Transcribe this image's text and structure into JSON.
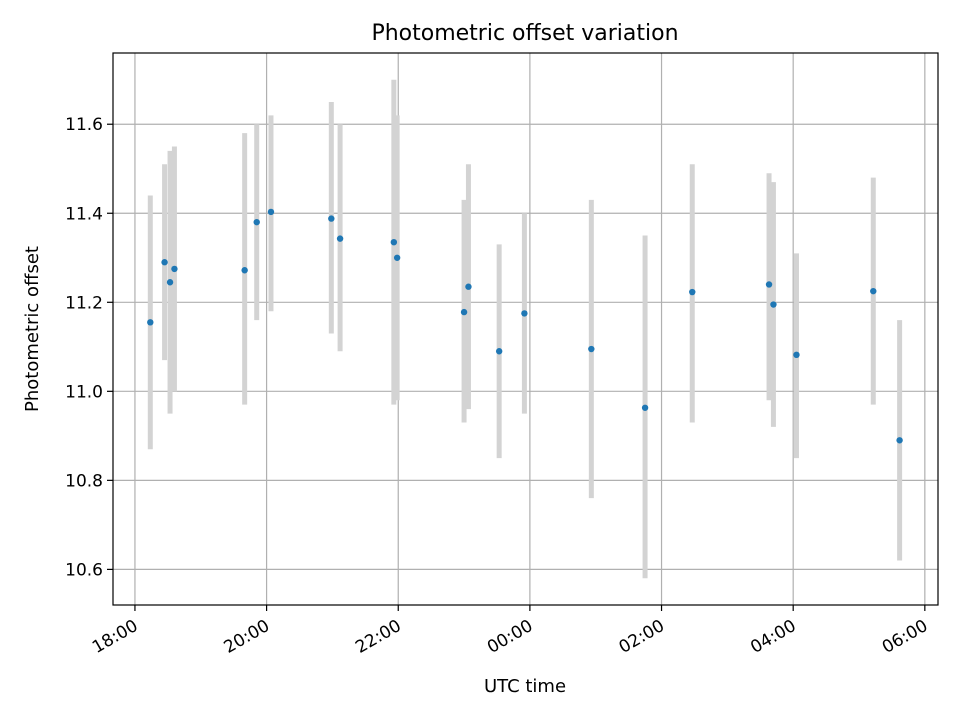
{
  "chart_data": {
    "type": "scatter",
    "title": "Photometric offset variation",
    "xlabel": "UTC time",
    "ylabel": "Photometric offset",
    "x_ticks": [
      "18:00",
      "20:00",
      "22:00",
      "00:00",
      "02:00",
      "04:00",
      "06:00"
    ],
    "y_ticks": [
      "10.6",
      "10.8",
      "11.0",
      "11.2",
      "11.4",
      "11.6"
    ],
    "xlim": [
      "17:40",
      "06:12"
    ],
    "ylim": [
      10.52,
      11.76
    ],
    "grid": true,
    "error_bars": true,
    "colors": {
      "point": "#1f77b4",
      "errorbar": "#d3d3d3",
      "grid": "#b0b0b0"
    },
    "points": [
      {
        "t": "18:14",
        "y": 11.155,
        "lo": 10.87,
        "hi": 11.44
      },
      {
        "t": "18:27",
        "y": 11.29,
        "lo": 11.07,
        "hi": 11.51
      },
      {
        "t": "18:32",
        "y": 11.245,
        "lo": 10.95,
        "hi": 11.54
      },
      {
        "t": "18:36",
        "y": 11.275,
        "lo": 11.0,
        "hi": 11.55
      },
      {
        "t": "19:40",
        "y": 11.272,
        "lo": 10.97,
        "hi": 11.58
      },
      {
        "t": "19:51",
        "y": 11.38,
        "lo": 11.16,
        "hi": 11.6
      },
      {
        "t": "20:04",
        "y": 11.403,
        "lo": 11.18,
        "hi": 11.62
      },
      {
        "t": "20:59",
        "y": 11.388,
        "lo": 11.13,
        "hi": 11.65
      },
      {
        "t": "21:07",
        "y": 11.343,
        "lo": 11.09,
        "hi": 11.6
      },
      {
        "t": "21:56",
        "y": 11.335,
        "lo": 10.97,
        "hi": 11.7
      },
      {
        "t": "21:59",
        "y": 11.3,
        "lo": 10.98,
        "hi": 11.62
      },
      {
        "t": "23:00",
        "y": 11.178,
        "lo": 10.93,
        "hi": 11.43
      },
      {
        "t": "23:04",
        "y": 11.235,
        "lo": 10.96,
        "hi": 11.51
      },
      {
        "t": "23:32",
        "y": 11.09,
        "lo": 10.85,
        "hi": 11.33
      },
      {
        "t": "23:55",
        "y": 11.175,
        "lo": 10.95,
        "hi": 11.4
      },
      {
        "t": "00:56",
        "y": 11.095,
        "lo": 10.76,
        "hi": 11.43
      },
      {
        "t": "01:45",
        "y": 10.963,
        "lo": 10.58,
        "hi": 11.35
      },
      {
        "t": "02:28",
        "y": 11.223,
        "lo": 10.93,
        "hi": 11.51
      },
      {
        "t": "03:38",
        "y": 11.24,
        "lo": 10.98,
        "hi": 11.49
      },
      {
        "t": "03:42",
        "y": 11.195,
        "lo": 10.92,
        "hi": 11.47
      },
      {
        "t": "04:03",
        "y": 11.082,
        "lo": 10.85,
        "hi": 11.31
      },
      {
        "t": "05:13",
        "y": 11.225,
        "lo": 10.97,
        "hi": 11.48
      },
      {
        "t": "05:37",
        "y": 10.89,
        "lo": 10.62,
        "hi": 11.16
      }
    ]
  }
}
